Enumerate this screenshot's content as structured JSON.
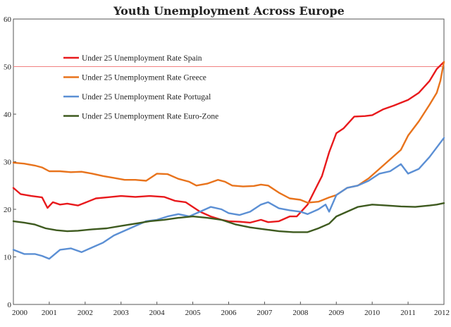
{
  "chart_data": {
    "type": "line",
    "title": "Youth Unemployment Across Europe",
    "xlabel": "",
    "ylabel": "",
    "xlim": [
      2000,
      2012
    ],
    "ylim": [
      0,
      60
    ],
    "x_ticks": [
      "2000",
      "2001",
      "2002",
      "2003",
      "2004",
      "2005",
      "2006",
      "2007",
      "2008",
      "2009",
      "2010",
      "2011",
      "2012"
    ],
    "y_ticks": [
      "0",
      "10",
      "20",
      "30",
      "40",
      "50",
      "60"
    ],
    "grid": false,
    "legend_position": "top-left",
    "reference_line": {
      "y": 50,
      "color": "#f08080"
    },
    "series": [
      {
        "name": "Under 25 Unemployment Rate Spain",
        "color": "#e8191c",
        "x": [
          2000,
          2000.2,
          2000.5,
          2000.8,
          2000.95,
          2001.1,
          2001.3,
          2001.5,
          2001.8,
          2002.0,
          2002.3,
          2002.6,
          2003.0,
          2003.4,
          2003.8,
          2004.2,
          2004.5,
          2004.8,
          2005.0,
          2005.2,
          2005.5,
          2005.8,
          2006.0,
          2006.3,
          2006.6,
          2006.9,
          2007.1,
          2007.4,
          2007.7,
          2007.9,
          2008.2,
          2008.4,
          2008.6,
          2008.8,
          2009.0,
          2009.2,
          2009.5,
          2009.8,
          2010.0,
          2010.3,
          2010.6,
          2011.0,
          2011.3,
          2011.6,
          2011.8,
          2012.0
        ],
        "values": [
          24.5,
          23.2,
          22.8,
          22.5,
          20.3,
          21.5,
          21.0,
          21.2,
          20.8,
          21.4,
          22.3,
          22.5,
          22.8,
          22.6,
          22.8,
          22.6,
          21.8,
          21.5,
          20.5,
          19.5,
          18.5,
          17.8,
          17.5,
          17.4,
          17.2,
          17.8,
          17.3,
          17.5,
          18.5,
          18.5,
          21.0,
          24.0,
          27.0,
          32.0,
          36.0,
          37.0,
          39.5,
          39.6,
          39.8,
          41.0,
          41.8,
          43.0,
          44.5,
          47.0,
          49.5,
          51.0
        ]
      },
      {
        "name": "Under 25 Unemployment Rate Greece",
        "color": "#e8731c",
        "x": [
          2000,
          2000.3,
          2000.6,
          2000.8,
          2001.0,
          2001.3,
          2001.6,
          2001.9,
          2002.2,
          2002.5,
          2002.8,
          2003.1,
          2003.4,
          2003.7,
          2004.0,
          2004.3,
          2004.6,
          2004.9,
          2005.1,
          2005.4,
          2005.7,
          2005.9,
          2006.1,
          2006.4,
          2006.7,
          2006.9,
          2007.1,
          2007.4,
          2007.7,
          2008.0,
          2008.2,
          2008.5,
          2008.8,
          2009.0,
          2009.3,
          2009.6,
          2009.9,
          2010.2,
          2010.5,
          2010.8,
          2011.0,
          2011.3,
          2011.6,
          2011.8,
          2011.9,
          2012.0
        ],
        "values": [
          29.8,
          29.6,
          29.2,
          28.8,
          28.0,
          28.0,
          27.8,
          27.9,
          27.5,
          27.0,
          26.6,
          26.2,
          26.2,
          26.0,
          27.5,
          27.4,
          26.4,
          25.8,
          25.0,
          25.4,
          26.2,
          25.8,
          25.0,
          24.8,
          24.9,
          25.2,
          25.0,
          23.5,
          22.3,
          22.0,
          21.4,
          21.6,
          22.5,
          23.0,
          24.5,
          25.0,
          26.5,
          28.5,
          30.5,
          32.5,
          35.5,
          38.5,
          42.0,
          44.5,
          47.0,
          51.0
        ]
      },
      {
        "name": "Under 25 Unemployment Rate Portugal",
        "color": "#5b8fd4",
        "x": [
          2000,
          2000.3,
          2000.6,
          2000.8,
          2001.0,
          2001.3,
          2001.6,
          2001.9,
          2002.2,
          2002.5,
          2002.8,
          2003.1,
          2003.4,
          2003.7,
          2004.0,
          2004.3,
          2004.6,
          2004.9,
          2005.2,
          2005.5,
          2005.8,
          2006.0,
          2006.3,
          2006.6,
          2006.9,
          2007.1,
          2007.4,
          2007.7,
          2008.0,
          2008.2,
          2008.5,
          2008.7,
          2008.8,
          2009.0,
          2009.3,
          2009.6,
          2009.9,
          2010.2,
          2010.5,
          2010.8,
          2011.0,
          2011.3,
          2011.6,
          2011.8,
          2012.0
        ],
        "values": [
          11.5,
          10.6,
          10.6,
          10.2,
          9.6,
          11.5,
          11.8,
          11.0,
          12.0,
          13.0,
          14.5,
          15.5,
          16.5,
          17.5,
          17.8,
          18.5,
          19.0,
          18.5,
          19.5,
          20.5,
          20.0,
          19.2,
          18.8,
          19.5,
          21.0,
          21.5,
          20.2,
          19.8,
          19.5,
          19.0,
          20.0,
          21.0,
          19.5,
          23.0,
          24.5,
          25.0,
          26.0,
          27.5,
          28.0,
          29.5,
          27.5,
          28.5,
          31.0,
          33.0,
          35.0
        ]
      },
      {
        "name": "Under 25 Unemployment Rate Euro-Zone",
        "color": "#3e5a1f",
        "x": [
          2000,
          2000.3,
          2000.6,
          2000.9,
          2001.2,
          2001.5,
          2001.8,
          2002.2,
          2002.6,
          2003.0,
          2003.4,
          2003.8,
          2004.2,
          2004.6,
          2005.0,
          2005.4,
          2005.8,
          2006.2,
          2006.6,
          2007.0,
          2007.4,
          2007.8,
          2008.2,
          2008.5,
          2008.8,
          2009.0,
          2009.3,
          2009.6,
          2010.0,
          2010.4,
          2010.8,
          2011.2,
          2011.6,
          2011.8,
          2012.0
        ],
        "values": [
          17.5,
          17.2,
          16.8,
          16.0,
          15.6,
          15.4,
          15.5,
          15.8,
          16.0,
          16.5,
          17.0,
          17.5,
          17.8,
          18.2,
          18.5,
          18.2,
          17.8,
          16.8,
          16.2,
          15.8,
          15.4,
          15.2,
          15.2,
          16.0,
          17.0,
          18.5,
          19.5,
          20.5,
          21.0,
          20.8,
          20.6,
          20.5,
          20.8,
          21.0,
          21.3
        ]
      }
    ]
  }
}
